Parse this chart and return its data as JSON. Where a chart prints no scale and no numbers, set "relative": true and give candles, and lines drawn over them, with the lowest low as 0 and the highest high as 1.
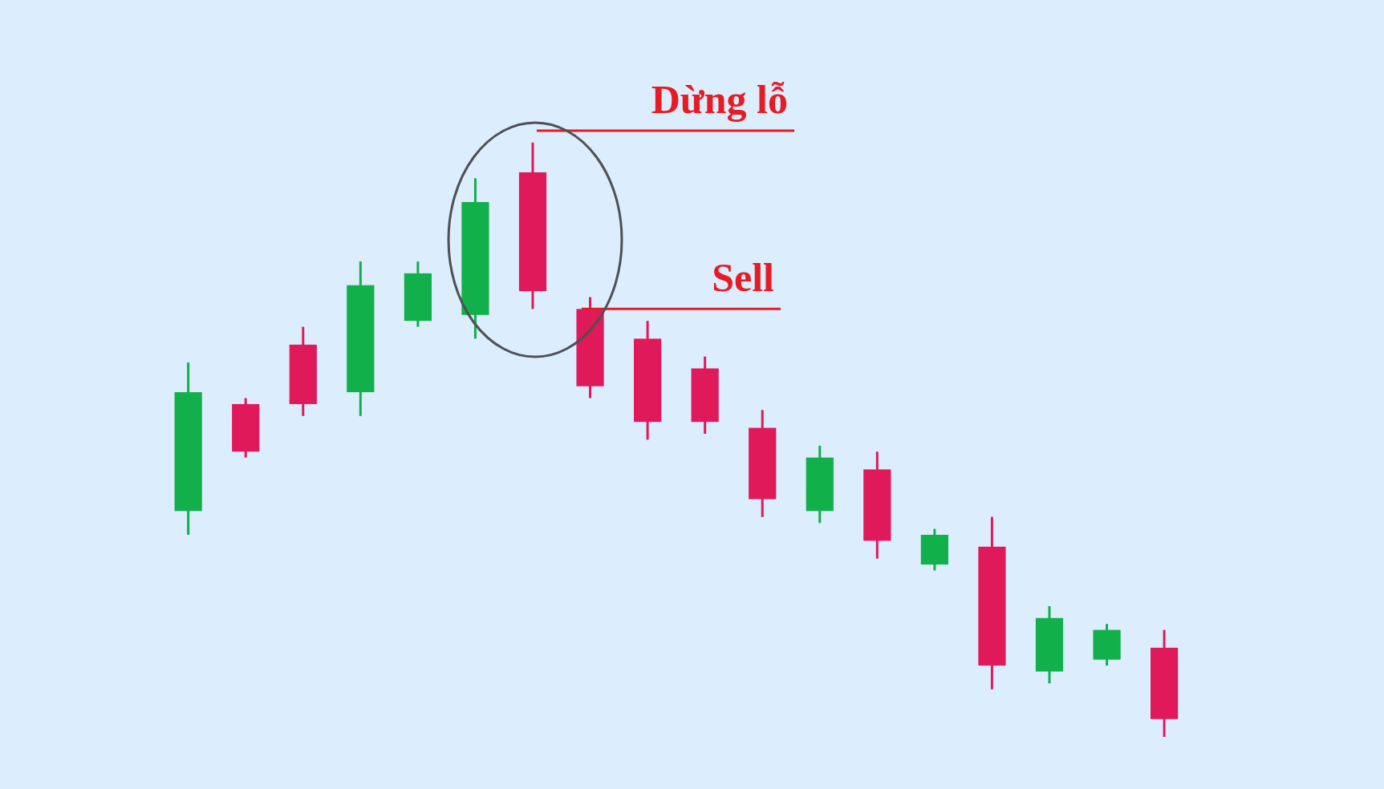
{
  "chart_data": {
    "type": "candlestick",
    "relative": true,
    "tick_labels": false,
    "categories": [
      null,
      null,
      null,
      null,
      null,
      null,
      null,
      null,
      null,
      null,
      null,
      null,
      null,
      null,
      null,
      null,
      null,
      null
    ],
    "ohlc": [
      [
        0.38,
        0.63,
        0.34,
        0.58
      ],
      [
        0.56,
        0.57,
        0.47,
        0.48
      ],
      [
        0.66,
        0.69,
        0.54,
        0.56
      ],
      [
        0.58,
        0.8,
        0.54,
        0.76
      ],
      [
        0.7,
        0.8,
        0.69,
        0.78
      ],
      [
        0.71,
        0.94,
        0.67,
        0.9
      ],
      [
        0.95,
        1,
        0.72,
        0.75
      ],
      [
        0.72,
        0.74,
        0.57,
        0.59
      ],
      [
        0.67,
        0.7,
        0.5,
        0.53
      ],
      [
        0.62,
        0.64,
        0.51,
        0.53
      ],
      [
        0.52,
        0.55,
        0.37,
        0.4
      ],
      [
        0.38,
        0.49,
        0.36,
        0.47
      ],
      [
        0.45,
        0.48,
        0.3,
        0.33
      ],
      [
        0.29,
        0.35,
        0.28,
        0.34
      ],
      [
        0.32,
        0.37,
        0.08,
        0.12
      ],
      [
        0.11,
        0.22,
        0.09,
        0.2
      ],
      [
        0.13,
        0.19,
        0.12,
        0.18
      ],
      [
        0.15,
        0.18,
        0,
        0.03
      ]
    ],
    "colors": [
      "#12b04a",
      "#e0195a",
      "#e0195a",
      "#12b04a",
      "#12b04a",
      "#12b04a",
      "#e0195a",
      "#e0195a",
      "#e0195a",
      "#e0195a",
      "#e0195a",
      "#12b04a",
      "#e0195a",
      "#12b04a",
      "#e0195a",
      "#12b04a",
      "#12b04a",
      "#e0195a"
    ],
    "ref_lines": [
      {
        "axis": "y",
        "value": 1.02,
        "label": "Dừng lỗ",
        "color": "#e51c23"
      },
      {
        "axis": "y",
        "value": 0.72,
        "label": "Sell",
        "color": "#e51c23"
      }
    ]
  }
}
